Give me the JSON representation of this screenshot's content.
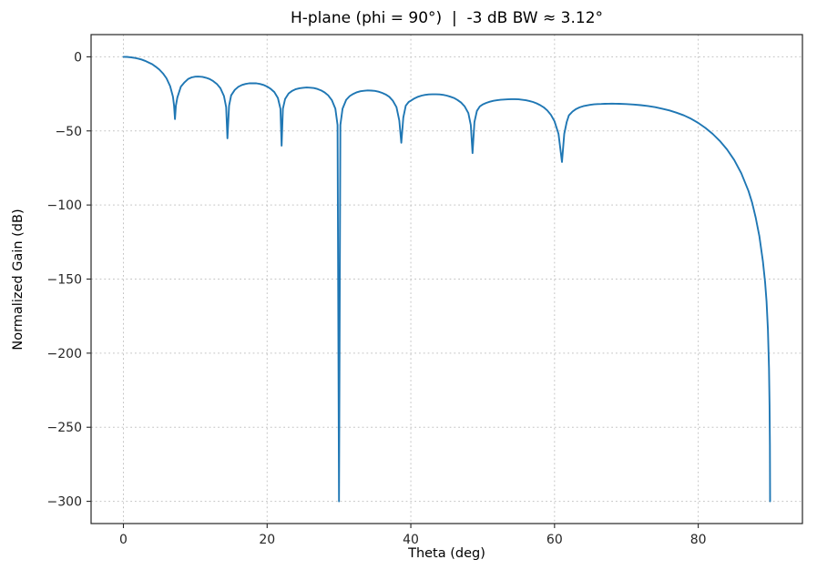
{
  "chart_data": {
    "type": "line",
    "title": "H-plane (phi = 90°)  |  -3 dB BW ≈ 3.12°",
    "xlabel": "Theta (deg)",
    "ylabel": "Normalized Gain (dB)",
    "xlim": [
      -4.5,
      94.5
    ],
    "ylim": [
      -315,
      15
    ],
    "x_ticks": [
      0,
      20,
      40,
      60,
      80
    ],
    "y_ticks": [
      0,
      -50,
      -100,
      -150,
      -200,
      -250,
      -300
    ],
    "x_tick_labels": [
      "0",
      "20",
      "40",
      "60",
      "80"
    ],
    "y_tick_labels": [
      "0",
      "−50",
      "−100",
      "−150",
      "−200",
      "−250",
      "−300"
    ],
    "grid": true,
    "grid_style": "dashed",
    "legend": "none",
    "line_color": "#1f77b4",
    "line_width": 1.9,
    "floor_dB": -300,
    "nulls_deg": [
      7.18,
      14.48,
      22.02,
      30.0,
      38.68,
      48.59,
      61.04,
      90.0
    ],
    "sidelobe_peaks_dB": [
      -13.3,
      -17.8,
      -20.7,
      -22.7,
      -25.3,
      -28.6,
      -31.6
    ],
    "series": [
      {
        "name": "Normalized gain",
        "points": [
          [
            0,
            0
          ],
          [
            0.5,
            -0.07
          ],
          [
            1,
            -0.28
          ],
          [
            1.5,
            -0.64
          ],
          [
            2,
            -1.14
          ],
          [
            2.5,
            -1.8
          ],
          [
            3,
            -2.67
          ],
          [
            3.5,
            -3.8
          ],
          [
            4,
            -5.0
          ],
          [
            4.5,
            -6.7
          ],
          [
            5,
            -8.6
          ],
          [
            5.5,
            -11.2
          ],
          [
            6,
            -14.5
          ],
          [
            6.5,
            -19.8
          ],
          [
            6.9,
            -27
          ],
          [
            7.05,
            -33
          ],
          [
            7.18,
            -42
          ],
          [
            7.3,
            -33
          ],
          [
            7.5,
            -27.5
          ],
          [
            8,
            -20.1
          ],
          [
            8.5,
            -17.2
          ],
          [
            9,
            -15.0
          ],
          [
            9.5,
            -13.9
          ],
          [
            10,
            -13.4
          ],
          [
            10.4,
            -13.3
          ],
          [
            11,
            -13.5
          ],
          [
            11.5,
            -14.1
          ],
          [
            12,
            -15.0
          ],
          [
            12.5,
            -16.4
          ],
          [
            13,
            -18.3
          ],
          [
            13.5,
            -21.2
          ],
          [
            14,
            -26.5
          ],
          [
            14.3,
            -34
          ],
          [
            14.48,
            -55
          ],
          [
            14.7,
            -33
          ],
          [
            15,
            -26
          ],
          [
            15.5,
            -22.3
          ],
          [
            16,
            -20.2
          ],
          [
            16.5,
            -19.0
          ],
          [
            17,
            -18.3
          ],
          [
            17.5,
            -17.9
          ],
          [
            18,
            -17.8
          ],
          [
            18.5,
            -17.9
          ],
          [
            19,
            -18.3
          ],
          [
            19.5,
            -19.0
          ],
          [
            20,
            -20.1
          ],
          [
            20.5,
            -21.6
          ],
          [
            21,
            -23.8
          ],
          [
            21.5,
            -27.8
          ],
          [
            21.85,
            -35
          ],
          [
            22.02,
            -60
          ],
          [
            22.2,
            -35
          ],
          [
            22.5,
            -28.5
          ],
          [
            23,
            -24.7
          ],
          [
            23.5,
            -22.9
          ],
          [
            24,
            -21.8
          ],
          [
            24.5,
            -21.2
          ],
          [
            25,
            -20.9
          ],
          [
            25.5,
            -20.7
          ],
          [
            26,
            -20.8
          ],
          [
            26.5,
            -21.1
          ],
          [
            27,
            -21.7
          ],
          [
            27.5,
            -22.6
          ],
          [
            28,
            -24.0
          ],
          [
            28.5,
            -26.0
          ],
          [
            29,
            -29.2
          ],
          [
            29.5,
            -35
          ],
          [
            29.8,
            -46
          ],
          [
            30,
            -300
          ],
          [
            30.2,
            -46
          ],
          [
            30.5,
            -35
          ],
          [
            31,
            -29
          ],
          [
            31.5,
            -26.5
          ],
          [
            32,
            -25.0
          ],
          [
            32.5,
            -23.9
          ],
          [
            33,
            -23.2
          ],
          [
            33.5,
            -22.9
          ],
          [
            34,
            -22.7
          ],
          [
            34.5,
            -22.8
          ],
          [
            35,
            -23.0
          ],
          [
            35.5,
            -23.5
          ],
          [
            36,
            -24.3
          ],
          [
            36.5,
            -25.4
          ],
          [
            37,
            -27.0
          ],
          [
            37.5,
            -29.6
          ],
          [
            38,
            -34
          ],
          [
            38.4,
            -43
          ],
          [
            38.68,
            -58
          ],
          [
            38.95,
            -41
          ],
          [
            39.3,
            -33
          ],
          [
            39.7,
            -30.5
          ],
          [
            40,
            -29.6
          ],
          [
            40.5,
            -28.1
          ],
          [
            41,
            -27.0
          ],
          [
            41.5,
            -26.2
          ],
          [
            42,
            -25.7
          ],
          [
            42.5,
            -25.4
          ],
          [
            43,
            -25.3
          ],
          [
            43.5,
            -25.3
          ],
          [
            44,
            -25.4
          ],
          [
            44.5,
            -25.7
          ],
          [
            45,
            -26.2
          ],
          [
            45.5,
            -26.9
          ],
          [
            46,
            -27.8
          ],
          [
            46.5,
            -29.1
          ],
          [
            47,
            -30.9
          ],
          [
            47.5,
            -33.5
          ],
          [
            48,
            -38
          ],
          [
            48.35,
            -46
          ],
          [
            48.59,
            -65
          ],
          [
            48.85,
            -44
          ],
          [
            49.2,
            -36.5
          ],
          [
            49.6,
            -33.5
          ],
          [
            50,
            -32.2
          ],
          [
            50.5,
            -31.1
          ],
          [
            51,
            -30.3
          ],
          [
            51.5,
            -29.7
          ],
          [
            52,
            -29.3
          ],
          [
            52.5,
            -29.0
          ],
          [
            53,
            -28.8
          ],
          [
            53.5,
            -28.7
          ],
          [
            54,
            -28.6
          ],
          [
            54.5,
            -28.6
          ],
          [
            55,
            -28.7
          ],
          [
            55.5,
            -29.0
          ],
          [
            56,
            -29.3
          ],
          [
            56.5,
            -29.8
          ],
          [
            57,
            -30.5
          ],
          [
            57.5,
            -31.4
          ],
          [
            58,
            -32.6
          ],
          [
            58.5,
            -34.1
          ],
          [
            59,
            -36.2
          ],
          [
            59.5,
            -39.2
          ],
          [
            60,
            -43.5
          ],
          [
            60.55,
            -52
          ],
          [
            61.04,
            -71
          ],
          [
            61.35,
            -52
          ],
          [
            61.7,
            -44
          ],
          [
            62,
            -39.5
          ],
          [
            62.5,
            -36.9
          ],
          [
            63,
            -35.2
          ],
          [
            63.5,
            -34.1
          ],
          [
            64,
            -33.3
          ],
          [
            64.5,
            -32.8
          ],
          [
            65,
            -32.4
          ],
          [
            65.5,
            -32.1
          ],
          [
            66,
            -31.9
          ],
          [
            66.5,
            -31.8
          ],
          [
            67,
            -31.7
          ],
          [
            67.5,
            -31.65
          ],
          [
            68,
            -31.6
          ],
          [
            68.5,
            -31.65
          ],
          [
            69,
            -31.7
          ],
          [
            70,
            -31.9
          ],
          [
            71,
            -32.2
          ],
          [
            72,
            -32.6
          ],
          [
            73,
            -33.2
          ],
          [
            74,
            -34.0
          ],
          [
            75,
            -35.0
          ],
          [
            76,
            -36.2
          ],
          [
            77,
            -37.7
          ],
          [
            78,
            -39.5
          ],
          [
            79,
            -41.8
          ],
          [
            80,
            -44.6
          ],
          [
            81,
            -48.0
          ],
          [
            82,
            -52.0
          ],
          [
            83,
            -56.8
          ],
          [
            84,
            -62.5
          ],
          [
            85,
            -69.6
          ],
          [
            86,
            -78.6
          ],
          [
            87,
            -90.6
          ],
          [
            87.5,
            -98.5
          ],
          [
            88,
            -108.5
          ],
          [
            88.5,
            -121
          ],
          [
            89,
            -138
          ],
          [
            89.3,
            -152
          ],
          [
            89.5,
            -165
          ],
          [
            89.7,
            -184
          ],
          [
            89.85,
            -210
          ],
          [
            89.92,
            -235
          ],
          [
            89.97,
            -262
          ],
          [
            90,
            -300
          ]
        ]
      }
    ]
  }
}
